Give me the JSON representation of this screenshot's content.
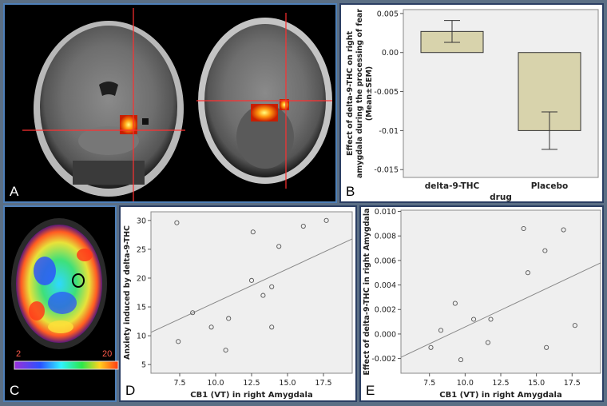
{
  "panels": {
    "a": {
      "label": "A"
    },
    "b": {
      "label": "B"
    },
    "c": {
      "label": "C",
      "scale_min": "2",
      "scale_max": "20"
    },
    "d": {
      "label": "D"
    },
    "e": {
      "label": "E"
    }
  },
  "colors": {
    "bar_fill": "#d8d3ac",
    "plot_bg": "#efefef",
    "crosshair": "#ff3030",
    "frame_blue": "#4e7fb8"
  },
  "chart_data": [
    {
      "id": "B",
      "type": "bar",
      "categories": [
        "delta-9-THC",
        "Placebo"
      ],
      "values": [
        0.0027,
        -0.01
      ],
      "errors": [
        0.0014,
        0.0024
      ],
      "xlabel": "drug",
      "ylabel": [
        "Effect of delta-9-THC on right",
        "amygdala during the processing of fear",
        "(Mean±SEM)"
      ],
      "ylim": [
        -0.016,
        0.0055
      ],
      "yticks": [
        "0.005",
        "0.00",
        "-0.005",
        "-0.01",
        "-0.015"
      ],
      "ytick_values": [
        0.005,
        0.0,
        -0.005,
        -0.01,
        -0.015
      ]
    },
    {
      "id": "D",
      "type": "scatter",
      "x": [
        7.3,
        7.4,
        8.4,
        9.7,
        10.7,
        10.9,
        12.5,
        12.6,
        13.3,
        13.9,
        13.9,
        14.4,
        16.1,
        17.7
      ],
      "y": [
        29.6,
        9.0,
        14.0,
        11.5,
        7.5,
        13.0,
        19.6,
        28.0,
        17.0,
        11.5,
        18.5,
        25.5,
        29.0,
        30.0
      ],
      "fit_line": [
        [
          5.5,
          10.6
        ],
        [
          19.5,
          26.8
        ]
      ],
      "xlabel": "CB1 (VT) in right Amygdala",
      "ylabel": "Anxiety induced by delta-9-THC",
      "xlim": [
        5.5,
        19.5
      ],
      "ylim": [
        3.5,
        31.5
      ],
      "xticks": [
        "7.5",
        "10.0",
        "12.5",
        "15.0",
        "17.5"
      ],
      "xtick_values": [
        7.5,
        10.0,
        12.5,
        15.0,
        17.5
      ],
      "yticks": [
        "30",
        "25",
        "20",
        "15",
        "10",
        "5"
      ],
      "ytick_values": [
        30,
        25,
        20,
        15,
        10,
        5
      ]
    },
    {
      "id": "E",
      "type": "scatter",
      "x": [
        7.6,
        8.3,
        9.3,
        9.7,
        10.6,
        11.6,
        11.8,
        14.1,
        14.4,
        15.6,
        15.7,
        16.9,
        17.7
      ],
      "y": [
        -0.0011,
        0.0003,
        0.0025,
        -0.0021,
        0.0012,
        -0.0007,
        0.0012,
        0.0086,
        0.005,
        0.0068,
        -0.0011,
        0.0085,
        0.0007
      ],
      "fit_line": [
        [
          5.5,
          -0.0019
        ],
        [
          19.5,
          0.0058
        ]
      ],
      "xlabel": "CB1 (VT) in right Amygdala",
      "ylabel": "Effect of delta-9-THC in right Amygdala",
      "xlim": [
        5.5,
        19.5
      ],
      "ylim": [
        -0.0032,
        0.0101
      ],
      "xticks": [
        "7.5",
        "10.0",
        "12.5",
        "15.0",
        "17.5"
      ],
      "xtick_values": [
        7.5,
        10.0,
        12.5,
        15.0,
        17.5
      ],
      "yticks": [
        "0.010",
        "0.008",
        "0.006",
        "0.004",
        "0.002",
        "0.000",
        "-0.002"
      ],
      "ytick_values": [
        0.01,
        0.008,
        0.006,
        0.004,
        0.002,
        0.0,
        -0.002
      ]
    }
  ]
}
